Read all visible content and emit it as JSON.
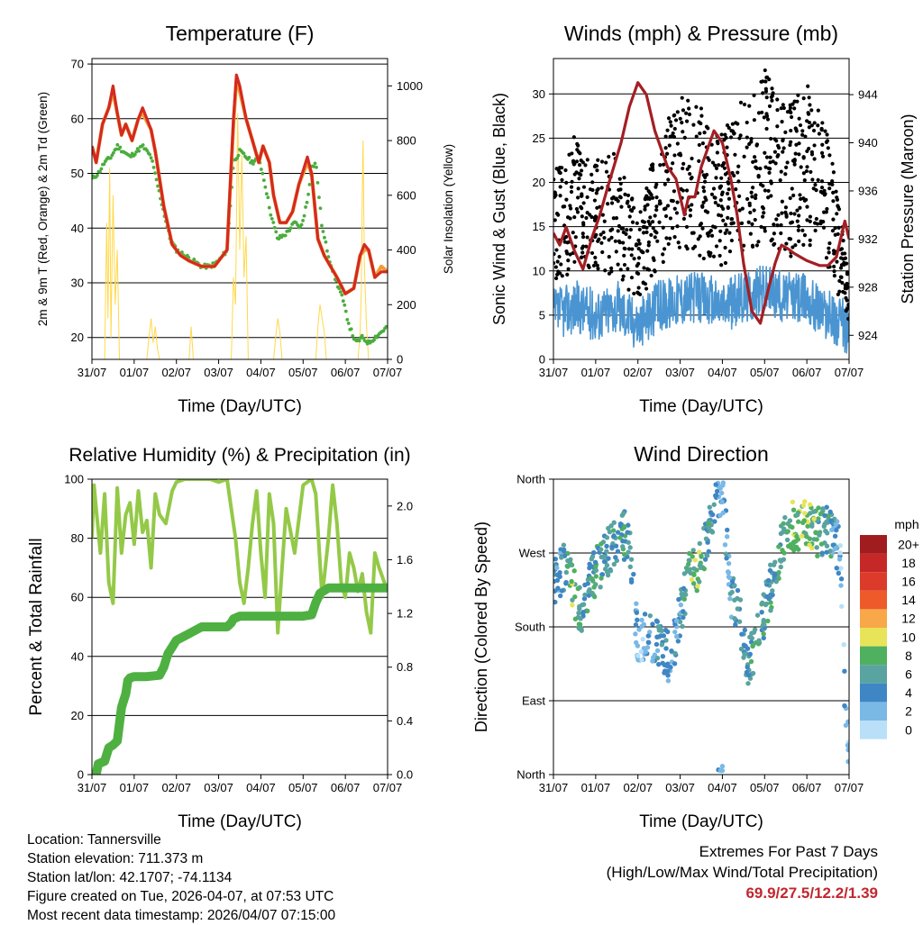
{
  "figure": {
    "info": {
      "location": "Location: Tannersville",
      "elevation": "Station elevation: 711.373 m",
      "latlon": "Station lat/lon: 42.1707; -74.1134",
      "created": "Figure created on Tue, 2026-04-07, at 07:53 UTC",
      "recent": "Most recent data timestamp: 2026/04/07 07:15:00"
    },
    "extremes": {
      "title": "Extremes For Past 7 Days",
      "subtitle": "(High/Low/Max Wind/Total Precipitation)",
      "values": "69.9/27.5/12.2/1.39"
    }
  },
  "colors": {
    "temp_red": "#d42a20",
    "temp_orange": "#f39a35",
    "dewpoint_green": "#4aad3c",
    "solar_yellow": "#ffd84a",
    "wind_blue": "#4a95d1",
    "gust_black": "#000000",
    "pressure_maroon": "#a31f24",
    "rh_lightgreen": "#94c948",
    "precip_green": "#4fb042"
  },
  "chart_data": [
    {
      "id": "temperature",
      "type": "line",
      "title": "Temperature (F)",
      "xlabel": "Time (Day/UTC)",
      "ylabel": "2m & 9m T (Red, Orange) & 2m Td (Green)",
      "y2label": "Solar Insolation (Yellow)",
      "x_ticks": [
        "31/07",
        "01/07",
        "02/07",
        "03/07",
        "04/07",
        "05/07",
        "06/07",
        "07/07"
      ],
      "xlim": [
        0,
        7
      ],
      "ylim": [
        16,
        71
      ],
      "y_ticks": [
        "20",
        "30",
        "40",
        "50",
        "60",
        "70"
      ],
      "y2lim": [
        0,
        1100
      ],
      "y2_ticks": [
        "0",
        "200",
        "400",
        "600",
        "800",
        "1000"
      ],
      "series": [
        {
          "name": "2m T",
          "color": "#d42a20",
          "x": [
            0,
            0.1,
            0.25,
            0.4,
            0.5,
            0.6,
            0.7,
            0.8,
            0.95,
            1.1,
            1.2,
            1.4,
            1.5,
            1.7,
            1.9,
            2.1,
            2.3,
            2.6,
            2.9,
            3.2,
            3.35,
            3.42,
            3.5,
            3.65,
            3.8,
            3.95,
            4.05,
            4.2,
            4.3,
            4.45,
            4.6,
            4.75,
            4.9,
            5.1,
            5.2,
            5.35,
            5.5,
            5.65,
            5.8,
            6.0,
            6.2,
            6.35,
            6.45,
            6.55,
            6.7,
            6.85,
            7.0
          ],
          "values": [
            55,
            52,
            59,
            62,
            66,
            61,
            57,
            59,
            56,
            60,
            62,
            58,
            54,
            44,
            37,
            35,
            34,
            33,
            33,
            36,
            60,
            68,
            66,
            60,
            56,
            52,
            55,
            52,
            46,
            41,
            41,
            43,
            48,
            53,
            50,
            38,
            35,
            33,
            31,
            28,
            29,
            35,
            37,
            36,
            31,
            32,
            32
          ]
        },
        {
          "name": "9m T",
          "color": "#f39a35",
          "x": [
            0,
            0.1,
            0.25,
            0.4,
            0.5,
            0.6,
            0.7,
            0.8,
            0.95,
            1.1,
            1.2,
            1.4,
            1.5,
            1.7,
            1.9,
            2.1,
            2.3,
            2.6,
            2.9,
            3.2,
            3.35,
            3.42,
            3.5,
            3.65,
            3.8,
            3.95,
            4.05,
            4.2,
            4.3,
            4.45,
            4.6,
            4.75,
            4.9,
            5.1,
            5.2,
            5.35,
            5.5,
            5.65,
            5.8,
            6.0,
            6.2,
            6.35,
            6.45,
            6.55,
            6.7,
            6.85,
            7.0
          ],
          "values": [
            55,
            52,
            59,
            62,
            65,
            61,
            57,
            59,
            56,
            60,
            61,
            58,
            54,
            44,
            37,
            35,
            34,
            33,
            33,
            36,
            59,
            67,
            65,
            60,
            56,
            52,
            55,
            52,
            46,
            41,
            41,
            43,
            48,
            52,
            50,
            38,
            35,
            33,
            31,
            28,
            29,
            35,
            36,
            36,
            31,
            33,
            32
          ]
        },
        {
          "name": "2m Td",
          "color": "#4aad3c",
          "x": [
            0,
            0.15,
            0.3,
            0.45,
            0.6,
            0.75,
            0.9,
            1.05,
            1.2,
            1.4,
            1.55,
            1.7,
            1.85,
            2.0,
            2.2,
            2.4,
            2.6,
            2.8,
            3.0,
            3.2,
            3.35,
            3.5,
            3.65,
            3.8,
            3.95,
            4.1,
            4.25,
            4.4,
            4.6,
            4.8,
            4.95,
            5.1,
            5.2,
            5.3,
            5.45,
            5.6,
            5.75,
            5.9,
            6.1,
            6.25,
            6.4,
            6.55,
            6.7,
            6.85,
            7.0
          ],
          "values": [
            49,
            50,
            52,
            53,
            55,
            54,
            53,
            54,
            55,
            53,
            48,
            43,
            38,
            36,
            35,
            34,
            33,
            33,
            34,
            36,
            52,
            54,
            53,
            52,
            53,
            48,
            42,
            38,
            39,
            41,
            40,
            45,
            51,
            52,
            40,
            35,
            31,
            28,
            22,
            19,
            20,
            19,
            20,
            21,
            22
          ]
        },
        {
          "name": "Solar Insolation",
          "color": "#ffd84a",
          "axis": "right",
          "x": [
            0.3,
            0.35,
            0.38,
            0.42,
            0.45,
            0.5,
            0.55,
            0.6,
            0.65,
            1.3,
            1.35,
            1.4,
            1.45,
            1.5,
            1.55,
            1.6,
            2.3,
            2.35,
            2.4,
            3.3,
            3.35,
            3.4,
            3.45,
            3.5,
            3.55,
            3.6,
            3.65,
            3.7,
            4.3,
            4.35,
            4.4,
            4.45,
            4.5,
            5.3,
            5.35,
            5.4,
            5.45,
            5.5,
            5.55,
            6.3,
            6.35,
            6.38,
            6.4,
            6.42,
            6.45,
            6.5,
            6.55
          ],
          "values": [
            0,
            500,
            150,
            700,
            80,
            600,
            200,
            400,
            0,
            0,
            80,
            150,
            60,
            120,
            40,
            0,
            0,
            120,
            0,
            0,
            300,
            200,
            900,
            400,
            750,
            300,
            450,
            0,
            0,
            80,
            150,
            100,
            0,
            0,
            120,
            200,
            150,
            100,
            0,
            0,
            100,
            250,
            600,
            800,
            350,
            120,
            0
          ]
        }
      ]
    },
    {
      "id": "winds",
      "type": "scatter",
      "title": "Winds (mph) & Pressure (mb)",
      "xlabel": "Time (Day/UTC)",
      "ylabel": "Sonic Wind & Gust (Blue, Black)",
      "y2label": "Station Pressure (Maroon)",
      "x_ticks": [
        "31/07",
        "01/07",
        "02/07",
        "03/07",
        "04/07",
        "05/07",
        "06/07",
        "07/07"
      ],
      "xlim": [
        0,
        7
      ],
      "ylim": [
        0,
        34
      ],
      "y_ticks": [
        "0",
        "5",
        "10",
        "15",
        "20",
        "25",
        "30"
      ],
      "y2lim": [
        922,
        947
      ],
      "y2_ticks": [
        "924",
        "928",
        "932",
        "936",
        "940",
        "944"
      ],
      "series": [
        {
          "name": "Sonic Wind",
          "color": "#4a95d1",
          "x": [
            0,
            0.5,
            1.0,
            1.5,
            2.0,
            2.5,
            3.0,
            3.5,
            4.0,
            4.5,
            5.0,
            5.5,
            6.0,
            6.5,
            6.85,
            7.0
          ],
          "values": [
            5,
            6,
            5,
            6,
            4,
            6,
            7,
            7,
            6,
            7,
            8,
            7,
            7,
            5,
            4,
            3
          ]
        },
        {
          "name": "Gust",
          "color": "#000000",
          "x": [
            0,
            0.5,
            1.0,
            1.5,
            2.0,
            2.5,
            3.0,
            3.5,
            4.0,
            4.5,
            5.0,
            5.5,
            6.0,
            6.5,
            6.85,
            7.0
          ],
          "values": [
            14,
            17,
            15,
            16,
            11,
            17,
            20,
            19,
            17,
            20,
            22,
            19,
            21,
            17,
            10,
            6
          ]
        },
        {
          "name": "Station Pressure",
          "color": "#a31f24",
          "axis": "right",
          "x": [
            0,
            0.15,
            0.3,
            0.5,
            0.7,
            0.9,
            1.1,
            1.3,
            1.6,
            1.8,
            2.0,
            2.2,
            2.4,
            2.7,
            2.9,
            3.1,
            3.2,
            3.35,
            3.5,
            3.7,
            3.8,
            4.0,
            4.2,
            4.35,
            4.5,
            4.7,
            4.9,
            5.1,
            5.25,
            5.4,
            5.55,
            5.7,
            6.0,
            6.3,
            6.5,
            6.7,
            6.8,
            6.9,
            7.0
          ],
          "values": [
            932.5,
            931.5,
            933,
            931,
            929.5,
            932,
            934,
            936.5,
            940,
            943,
            945,
            944,
            941,
            938,
            937,
            934,
            935.5,
            935.5,
            938,
            940,
            941,
            940,
            937,
            934,
            930,
            926,
            925,
            928,
            930,
            931.5,
            931.2,
            930.8,
            930.2,
            929.8,
            929.8,
            930.5,
            932,
            933.5,
            932
          ]
        }
      ]
    },
    {
      "id": "humidity",
      "type": "line",
      "title": "Relative Humidity (%) & Precipitation (in)",
      "xlabel": "Time (Day/UTC)",
      "ylabel": "Percent & Total Rainfall",
      "x_ticks": [
        "31/07",
        "01/07",
        "02/07",
        "03/07",
        "04/07",
        "05/07",
        "06/07",
        "07/07"
      ],
      "xlim": [
        0,
        7
      ],
      "ylim": [
        0,
        100
      ],
      "y_ticks": [
        "0",
        "20",
        "40",
        "60",
        "80",
        "100"
      ],
      "y2lim": [
        0,
        2.2
      ],
      "y2_ticks": [
        "0.0",
        "0.4",
        "0.8",
        "1.2",
        "1.6",
        "2.0"
      ],
      "series": [
        {
          "name": "Relative Humidity",
          "color": "#94c948",
          "x": [
            0,
            0.05,
            0.1,
            0.2,
            0.3,
            0.4,
            0.5,
            0.6,
            0.7,
            0.8,
            0.9,
            1.0,
            1.1,
            1.2,
            1.3,
            1.4,
            1.5,
            1.6,
            1.75,
            1.9,
            2.0,
            2.2,
            2.5,
            2.8,
            3.0,
            3.2,
            3.3,
            3.4,
            3.5,
            3.6,
            3.7,
            3.8,
            3.9,
            4.0,
            4.1,
            4.2,
            4.3,
            4.4,
            4.5,
            4.6,
            4.8,
            5.0,
            5.2,
            5.3,
            5.45,
            5.6,
            5.7,
            5.8,
            5.9,
            6.0,
            6.1,
            6.2,
            6.3,
            6.4,
            6.5,
            6.6,
            6.7,
            6.8,
            7.0
          ],
          "values": [
            80,
            98,
            90,
            75,
            95,
            65,
            58,
            97,
            75,
            88,
            92,
            78,
            96,
            82,
            86,
            70,
            95,
            88,
            85,
            96,
            99,
            100,
            100,
            100,
            99,
            100,
            90,
            80,
            65,
            58,
            70,
            85,
            96,
            75,
            60,
            95,
            85,
            48,
            70,
            90,
            75,
            98,
            100,
            95,
            60,
            80,
            98,
            85,
            65,
            60,
            75,
            70,
            62,
            68,
            55,
            48,
            75,
            70,
            62
          ]
        },
        {
          "name": "Total Precipitation",
          "color": "#4fb042",
          "axis": "right",
          "x": [
            0,
            0.1,
            0.15,
            0.3,
            0.4,
            0.5,
            0.6,
            0.7,
            0.75,
            0.8,
            0.85,
            0.9,
            1.0,
            1.3,
            1.6,
            1.7,
            1.8,
            1.9,
            2.0,
            2.3,
            2.6,
            2.9,
            3.2,
            3.3,
            3.35,
            3.5,
            3.7,
            4.0,
            4.3,
            4.6,
            5.0,
            5.2,
            5.3,
            5.4,
            5.6,
            6.0,
            6.3,
            7.0
          ],
          "values": [
            0,
            0,
            0.08,
            0.1,
            0.2,
            0.22,
            0.25,
            0.5,
            0.55,
            0.6,
            0.7,
            0.72,
            0.73,
            0.73,
            0.74,
            0.8,
            0.9,
            0.95,
            1.0,
            1.05,
            1.1,
            1.1,
            1.1,
            1.13,
            1.16,
            1.18,
            1.18,
            1.18,
            1.18,
            1.18,
            1.18,
            1.19,
            1.28,
            1.35,
            1.39,
            1.39,
            1.39,
            1.39
          ]
        }
      ]
    },
    {
      "id": "wind_direction",
      "type": "scatter",
      "title": "Wind Direction",
      "xlabel": "Time (Day/UTC)",
      "ylabel": "Direction (Colored By Speed)",
      "x_ticks": [
        "31/07",
        "01/07",
        "02/07",
        "03/07",
        "04/07",
        "05/07",
        "06/07",
        "07/07"
      ],
      "xlim": [
        0,
        7
      ],
      "ylim": [
        0,
        360
      ],
      "y_ticks": [
        "North",
        "East",
        "South",
        "West",
        "North"
      ],
      "legend": {
        "title": "mph",
        "labels": [
          "20+",
          "18",
          "16",
          "14",
          "12",
          "10",
          "8",
          "6",
          "4",
          "2",
          "0"
        ],
        "colors": [
          "#a01c1e",
          "#c62828",
          "#dc3a2a",
          "#ee5a2a",
          "#f8a848",
          "#e8e45a",
          "#4fb060",
          "#59a3a0",
          "#3f86c4",
          "#7ab8e6",
          "#b9e0f8"
        ]
      },
      "series": [
        {
          "name": "Direction",
          "x": [
            0.1,
            0.3,
            0.5,
            0.7,
            0.9,
            1.2,
            1.5,
            1.8,
            2.0,
            2.2,
            2.4,
            2.6,
            2.8,
            3.0,
            3.2,
            3.4,
            3.6,
            3.8,
            4.0,
            4.2,
            4.4,
            4.6,
            4.8,
            5.0,
            5.2,
            5.4,
            5.6,
            5.8,
            6.0,
            6.2,
            6.5,
            6.8,
            6.9,
            7.0
          ],
          "values": [
            240,
            260,
            220,
            190,
            240,
            265,
            285,
            295,
            150,
            170,
            160,
            150,
            140,
            200,
            240,
            250,
            280,
            320,
            350,
            220,
            190,
            140,
            160,
            200,
            240,
            280,
            305,
            300,
            305,
            295,
            300,
            270,
            90,
            30
          ],
          "speeds": [
            4,
            6,
            8,
            5,
            6,
            5,
            6,
            5,
            2,
            3,
            4,
            5,
            4,
            4,
            7,
            8,
            6,
            4,
            3,
            4,
            5,
            6,
            7,
            5,
            6,
            7,
            7,
            8,
            9,
            7,
            6,
            2,
            2,
            2
          ]
        }
      ]
    }
  ]
}
